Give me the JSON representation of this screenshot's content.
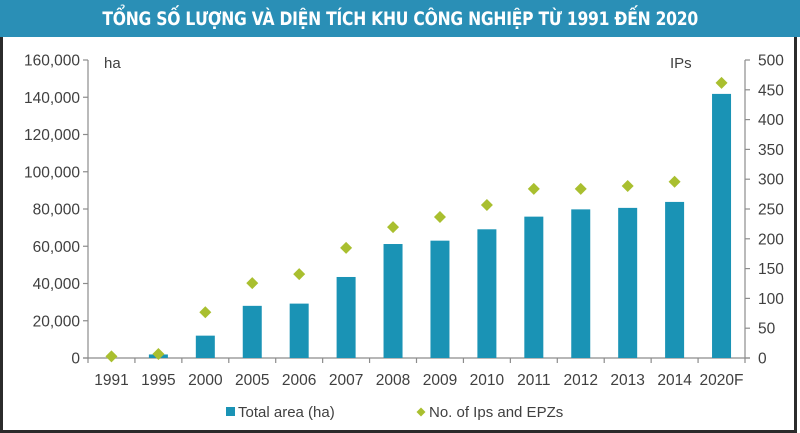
{
  "title": "TỔNG SỐ LƯỢNG VÀ DIỆN TÍCH KHU CÔNG NGHIỆP TỪ 1991 ĐẾN 2020",
  "colors": {
    "title_band": "#2a8fb6",
    "bar": "#1a93b5",
    "diamond": "#a9bf2f",
    "axis": "#8c8c8c",
    "text": "#404040",
    "frame": "#2b2b2b"
  },
  "chart_data": {
    "type": "bar",
    "title": "TỔNG SỐ LƯỢNG VÀ DIỆN TÍCH KHU CÔNG NGHIỆP TỪ 1991 ĐẾN 2020",
    "categories": [
      "1991",
      "1995",
      "2000",
      "2005",
      "2006",
      "2007",
      "2008",
      "2009",
      "2010",
      "2011",
      "2012",
      "2013",
      "2014",
      "2020F"
    ],
    "series": [
      {
        "name": "Total area (ha)",
        "type": "bar",
        "axis": "left",
        "values": [
          0,
          1900,
          12000,
          28000,
          29200,
          43500,
          61200,
          63000,
          69100,
          75900,
          79800,
          80600,
          83800,
          141800
        ]
      },
      {
        "name": "No. of Ips and EPZs",
        "type": "scatter",
        "marker": "diamond",
        "axis": "right",
        "values": [
          1,
          5,
          75,
          124,
          139,
          183,
          218,
          235,
          255,
          282,
          282,
          287,
          294,
          460
        ]
      }
    ],
    "left_axis": {
      "label": "ha",
      "ylim": [
        0,
        160000
      ],
      "ticks": [
        "0",
        "20,000",
        "40,000",
        "60,000",
        "80,000",
        "100,000",
        "120,000",
        "140,000",
        "160,000"
      ]
    },
    "right_axis": {
      "label": "IPs",
      "ylim": [
        0,
        500
      ],
      "ticks": [
        "0",
        "50",
        "100",
        "150",
        "200",
        "250",
        "300",
        "350",
        "400",
        "450",
        "500"
      ]
    },
    "xlabel": "",
    "grid": false,
    "legend_position": "bottom"
  },
  "legend": {
    "items": [
      {
        "label": "Total area (ha)",
        "marker": "square"
      },
      {
        "label": "No. of Ips and EPZs",
        "marker": "diamond"
      }
    ]
  }
}
